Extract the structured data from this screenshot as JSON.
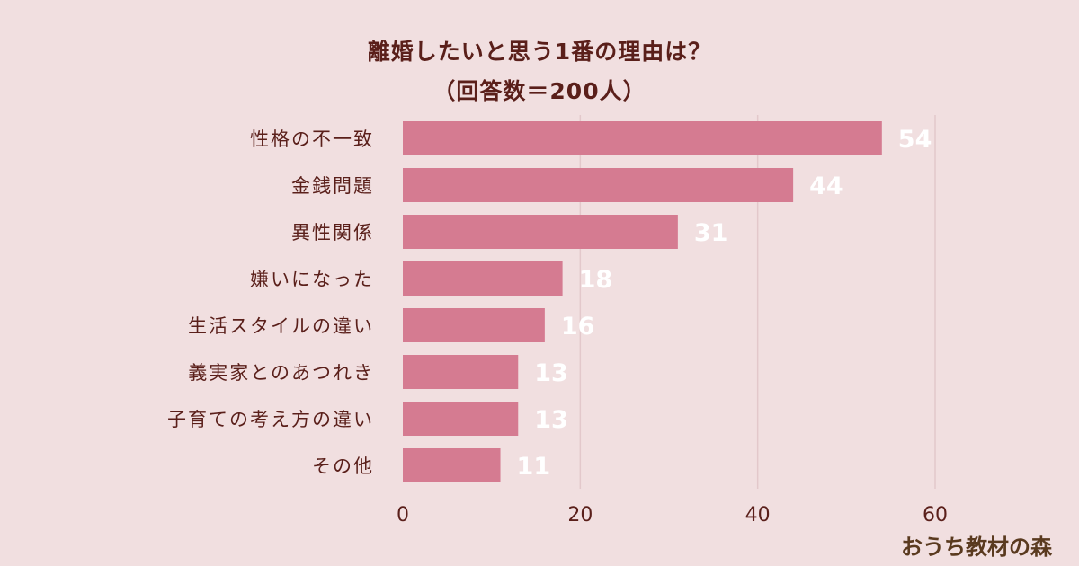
{
  "brand": "おうち教材の森",
  "colors": {
    "bar": "#d57b91",
    "grid": "#e3c8cb",
    "text": "#5a1f1a",
    "value": "#ffffff"
  },
  "chart_data": {
    "type": "bar",
    "orientation": "horizontal",
    "title": "離婚したいと思う1番の理由は？",
    "subtitle": "（回答数＝200人）",
    "categories": [
      "性格の不一致",
      "金銭問題",
      "異性関係",
      "嫌いになった",
      "生活スタイルの違い",
      "義実家とのあつれき",
      "子育ての考え方の違い",
      "その他"
    ],
    "values": [
      54,
      44,
      31,
      18,
      16,
      13,
      13,
      11
    ],
    "xlim": [
      0,
      60
    ],
    "xticks": [
      0,
      20,
      40,
      60
    ],
    "grid": true,
    "data_labels": true
  }
}
